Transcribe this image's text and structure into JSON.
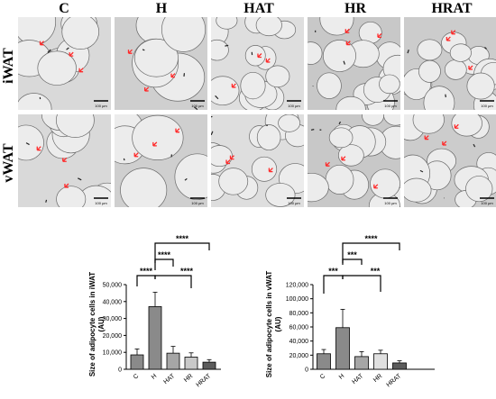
{
  "figure": {
    "columns": [
      "C",
      "H",
      "HAT",
      "HR",
      "HRAT"
    ],
    "rows": [
      "iWAT",
      "vWAT"
    ],
    "scale_bar_label": "100 µm"
  },
  "chart_data": [
    {
      "type": "bar",
      "categories": [
        "C",
        "H",
        "HAT",
        "HR",
        "HRAT"
      ],
      "values": [
        8500,
        37000,
        9500,
        7200,
        4200
      ],
      "errors": [
        3500,
        8500,
        4000,
        2500,
        1500
      ],
      "ylabel": "Size of adipocyte cells in iWAT (AU)",
      "ylabel_lines": [
        "Size of adipocyte cells in iWAT",
        "(AU)"
      ],
      "ylim": [
        0,
        50000
      ],
      "yticks": [
        "0",
        "10,000",
        "20,000",
        "30,000",
        "40,000",
        "50,000"
      ],
      "significance": [
        "****",
        "****",
        "****",
        "****"
      ],
      "colors": [
        "#8a8a8a",
        "#8a8a8a",
        "#a6a6a6",
        "#c9c9c9",
        "#5c5c5c"
      ]
    },
    {
      "type": "bar",
      "categories": [
        "C",
        "H",
        "HAT",
        "HR",
        "HRAT"
      ],
      "values": [
        22000,
        59000,
        18000,
        22000,
        9000
      ],
      "errors": [
        6000,
        26000,
        7000,
        5000,
        3000
      ],
      "ylabel": "Size of adipocyte cells in vWAT (AU)",
      "ylabel_lines": [
        "Size of adipocyte cells in vWAT",
        "(AU)"
      ],
      "ylim": [
        0,
        120000
      ],
      "yticks": [
        "0",
        "20,000",
        "40,000",
        "60,000",
        "80,000",
        "100,000",
        "120,000"
      ],
      "significance": [
        "***",
        "***",
        "***",
        "****"
      ],
      "colors": [
        "#8a8a8a",
        "#8a8a8a",
        "#a6a6a6",
        "#e0e0e0",
        "#5c5c5c"
      ]
    }
  ]
}
